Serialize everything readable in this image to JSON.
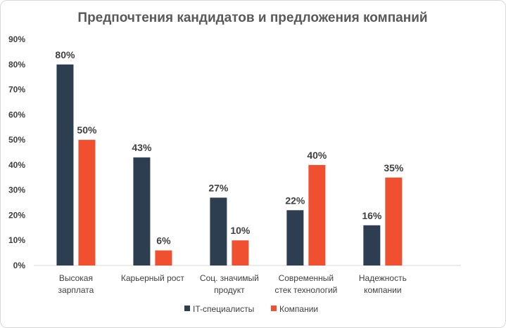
{
  "chart_data": {
    "type": "bar",
    "title": "Предпочтения кандидатов и предложения компаний",
    "categories": [
      [
        "Высокая",
        "зарплата"
      ],
      [
        "Карьерный рост"
      ],
      [
        "Соц. значимый",
        "продукт"
      ],
      [
        "Современный",
        "стек технологий"
      ],
      [
        "Надежность",
        "компании"
      ]
    ],
    "series": [
      {
        "name": "IT-специалисты",
        "color": "#2d3e50",
        "values": [
          80,
          43,
          27,
          22,
          16
        ]
      },
      {
        "name": "Компании",
        "color": "#f0502f",
        "values": [
          50,
          6,
          10,
          40,
          35
        ]
      }
    ],
    "value_suffix": "%",
    "ylim": [
      0,
      90
    ],
    "yticks": [
      "0%",
      "10%",
      "20%",
      "30%",
      "40%",
      "50%",
      "60%",
      "70%",
      "80%",
      "90%"
    ],
    "grid": false,
    "legend_position": "bottom"
  }
}
